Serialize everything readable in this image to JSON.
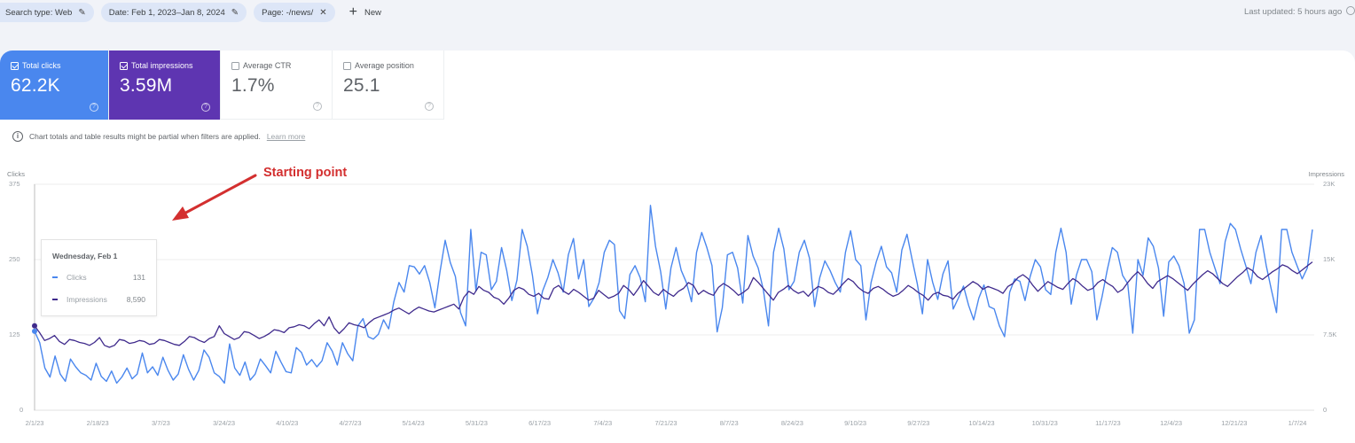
{
  "filters": {
    "chips": [
      {
        "label": "Search type: Web",
        "icon": "pencil-icon"
      },
      {
        "label": "Date: Feb 1, 2023–Jan 8, 2024",
        "icon": "pencil-icon"
      },
      {
        "label": "Page: -/news/",
        "icon": "close-icon"
      }
    ],
    "new_label": "New",
    "last_updated": "Last updated: 5 hours ago"
  },
  "metrics": [
    {
      "label": "Total clicks",
      "value": "62.2K",
      "checked": true,
      "color": "#4a87ee"
    },
    {
      "label": "Total impressions",
      "value": "3.59M",
      "checked": true,
      "color": "#5e35b1"
    },
    {
      "label": "Average CTR",
      "value": "1.7%",
      "checked": false
    },
    {
      "label": "Average position",
      "value": "25.1",
      "checked": false
    }
  ],
  "notice": {
    "text": "Chart totals and table results might be partial when filters are applied.",
    "link": "Learn more"
  },
  "annotation": "Starting point",
  "tooltip": {
    "date": "Wednesday, Feb 1",
    "rows": [
      {
        "label": "Clicks",
        "value": "131",
        "color": "#4a87ee"
      },
      {
        "label": "Impressions",
        "value": "8,590",
        "color": "#3f2a8c"
      }
    ]
  },
  "chart_data": {
    "type": "line",
    "title": "",
    "xlabel": "",
    "ylabel_left": "Clicks",
    "ylabel_right": "Impressions",
    "yticks_left": [
      "0",
      "125",
      "250",
      "375"
    ],
    "yticks_right": [
      "0",
      "7.5K",
      "15K",
      "23K"
    ],
    "ylim_left": [
      0,
      375
    ],
    "ylim_right": [
      0,
      23000
    ],
    "grid": true,
    "legend": "none",
    "xticks": [
      "2/1/23",
      "2/18/23",
      "3/7/23",
      "3/24/23",
      "4/10/23",
      "4/27/23",
      "5/14/23",
      "5/31/23",
      "6/17/23",
      "7/4/23",
      "7/21/23",
      "8/7/23",
      "8/24/23",
      "9/10/23",
      "9/27/23",
      "10/14/23",
      "10/31/23",
      "11/17/23",
      "12/4/23",
      "12/21/23",
      "1/7/24"
    ],
    "series": [
      {
        "name": "Clicks",
        "color": "#4a87ee",
        "axis": "left",
        "values": [
          131,
          112,
          70,
          55,
          90,
          60,
          48,
          85,
          72,
          62,
          58,
          50,
          78,
          56,
          48,
          65,
          45,
          55,
          70,
          52,
          60,
          95,
          62,
          72,
          58,
          88,
          66,
          50,
          60,
          92,
          68,
          50,
          66,
          100,
          88,
          62,
          56,
          45,
          110,
          70,
          58,
          80,
          50,
          60,
          85,
          74,
          62,
          98,
          80,
          64,
          62,
          104,
          96,
          75,
          84,
          72,
          82,
          112,
          98,
          75,
          112,
          94,
          82,
          140,
          152,
          122,
          118,
          126,
          150,
          135,
          180,
          212,
          196,
          240,
          238,
          226,
          240,
          212,
          170,
          230,
          282,
          245,
          222,
          162,
          140,
          300,
          198,
          262,
          258,
          200,
          214,
          270,
          232,
          182,
          216,
          300,
          272,
          224,
          160,
          198,
          220,
          250,
          228,
          196,
          258,
          285,
          218,
          250,
          172,
          186,
          212,
          262,
          282,
          275,
          165,
          152,
          225,
          240,
          220,
          180,
          340,
          272,
          230,
          168,
          236,
          270,
          232,
          212,
          180,
          262,
          295,
          270,
          240,
          130,
          170,
          258,
          262,
          236,
          178,
          290,
          256,
          236,
          200,
          140,
          262,
          302,
          268,
          200,
          214,
          262,
          282,
          252,
          172,
          220,
          248,
          232,
          212,
          196,
          262,
          298,
          250,
          240,
          150,
          212,
          246,
          272,
          238,
          228,
          196,
          266,
          292,
          250,
          210,
          160,
          250,
          212,
          184,
          226,
          248,
          168,
          186,
          206,
          174,
          150,
          186,
          208,
          172,
          168,
          140,
          122,
          196,
          218,
          214,
          182,
          222,
          250,
          238,
          200,
          192,
          262,
          302,
          262,
          176,
          224,
          250,
          250,
          230,
          150,
          188,
          232,
          270,
          262,
          224,
          210,
          128,
          250,
          224,
          286,
          272,
          236,
          156,
          246,
          256,
          240,
          210,
          128,
          150,
          300,
          300,
          262,
          236,
          210,
          280,
          310,
          300,
          268,
          240,
          210,
          262,
          290,
          240,
          200,
          162,
          300,
          300,
          262,
          240,
          218,
          236,
          300
        ]
      },
      {
        "name": "Impressions",
        "color": "#3f2a8c",
        "axis": "right",
        "values": [
          8590,
          7900,
          7100,
          7300,
          7600,
          7000,
          6700,
          7200,
          7100,
          6900,
          6800,
          6600,
          6900,
          7400,
          6600,
          6400,
          6600,
          7200,
          7100,
          6800,
          6900,
          7100,
          7000,
          6700,
          6800,
          7200,
          7100,
          6900,
          6700,
          6600,
          7000,
          7500,
          7400,
          7100,
          6900,
          7300,
          7500,
          8600,
          7800,
          7500,
          7200,
          7400,
          8000,
          7900,
          7600,
          7300,
          7500,
          7800,
          8200,
          8100,
          7900,
          8400,
          8500,
          8700,
          8600,
          8300,
          8800,
          9200,
          8600,
          9500,
          8400,
          7800,
          8300,
          8900,
          8700,
          8600,
          8400,
          8900,
          9300,
          9500,
          9700,
          9900,
          10200,
          10400,
          10100,
          9800,
          10200,
          10500,
          10300,
          10100,
          10000,
          10200,
          10400,
          10600,
          10800,
          10300,
          11500,
          12100,
          11800,
          12600,
          12200,
          12000,
          11500,
          11300,
          10800,
          11400,
          12200,
          12500,
          12300,
          11800,
          11600,
          11900,
          11400,
          11300,
          12400,
          12700,
          12100,
          11800,
          12300,
          12000,
          11600,
          11200,
          11400,
          12200,
          11800,
          11400,
          11600,
          11900,
          12700,
          12300,
          11700,
          12400,
          13200,
          12600,
          12000,
          11700,
          12300,
          11900,
          11600,
          12100,
          12400,
          13000,
          12700,
          11800,
          12200,
          11900,
          11700,
          12500,
          12900,
          12600,
          12200,
          11700,
          12000,
          12400,
          13500,
          13000,
          12400,
          11800,
          11200,
          12000,
          12300,
          12700,
          12200,
          11900,
          12100,
          11600,
          12200,
          12600,
          12400,
          12000,
          11800,
          12300,
          12900,
          13400,
          13100,
          12500,
          12100,
          11900,
          12400,
          12600,
          12300,
          11900,
          11600,
          11800,
          12200,
          12700,
          12400,
          12000,
          11700,
          11200,
          11800,
          12000,
          11700,
          11600,
          11300,
          11900,
          12300,
          12700,
          13100,
          12800,
          12300,
          12600,
          12400,
          12200,
          11900,
          12600,
          12900,
          13500,
          13800,
          13400,
          12700,
          12100,
          12600,
          13100,
          12800,
          12500,
          12300,
          12900,
          13400,
          13100,
          12600,
          12200,
          12400,
          13000,
          13300,
          12900,
          12600,
          12000,
          12300,
          13000,
          13600,
          14100,
          13600,
          12900,
          12400,
          13100,
          13400,
          13700,
          13400,
          13000,
          12600,
          12200,
          12800,
          13300,
          13800,
          14200,
          13900,
          13400,
          12900,
          12600,
          13100,
          13600,
          14000,
          14500,
          14200,
          13600,
          13300,
          13700,
          14100,
          14400,
          14800,
          14600,
          14200,
          13900,
          14300,
          14700,
          15100
        ]
      }
    ]
  }
}
